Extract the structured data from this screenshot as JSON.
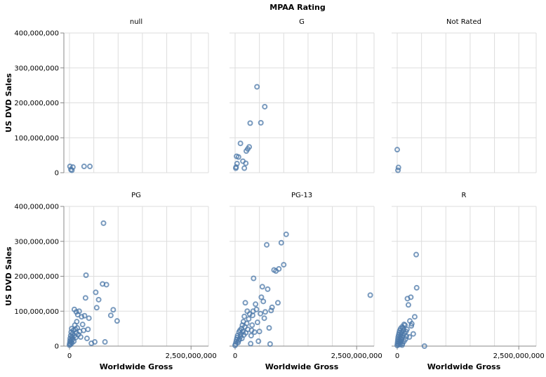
{
  "chart_data": {
    "type": "scatter",
    "column_title": "MPAA Rating",
    "xlabel": "Worldwide Gross",
    "ylabel": "US DVD Sales",
    "xlim": [
      0,
      2800000000
    ],
    "ylim": [
      0,
      400000000
    ],
    "x_ticks": [
      0,
      2500000000
    ],
    "y_ticks": [
      0,
      100000000,
      200000000,
      300000000,
      400000000
    ],
    "grid": true,
    "point_color": "#4c78a8",
    "facets": [
      {
        "label": "null",
        "points": [
          [
            10000000,
            18000000
          ],
          [
            30000000,
            9000000
          ],
          [
            50000000,
            7000000
          ],
          [
            70000000,
            16000000
          ],
          [
            300000000,
            18000000
          ],
          [
            420000000,
            18000000
          ]
        ]
      },
      {
        "label": "G",
        "points": [
          [
            15000000,
            13000000
          ],
          [
            20000000,
            16000000
          ],
          [
            30000000,
            47000000
          ],
          [
            40000000,
            26000000
          ],
          [
            70000000,
            45000000
          ],
          [
            110000000,
            84000000
          ],
          [
            160000000,
            33000000
          ],
          [
            190000000,
            13000000
          ],
          [
            220000000,
            27000000
          ],
          [
            230000000,
            62000000
          ],
          [
            260000000,
            68000000
          ],
          [
            290000000,
            74000000
          ],
          [
            310000000,
            142000000
          ],
          [
            450000000,
            246000000
          ],
          [
            530000000,
            143000000
          ],
          [
            610000000,
            189000000
          ]
        ]
      },
      {
        "label": "Not Rated",
        "points": [
          [
            0,
            66000000
          ],
          [
            15000000,
            7000000
          ],
          [
            25000000,
            15000000
          ]
        ]
      },
      {
        "label": "PG",
        "points": [
          [
            0,
            3000000
          ],
          [
            5000000,
            8000000
          ],
          [
            10000000,
            15000000
          ],
          [
            15000000,
            22000000
          ],
          [
            20000000,
            5000000
          ],
          [
            25000000,
            30000000
          ],
          [
            30000000,
            12000000
          ],
          [
            35000000,
            40000000
          ],
          [
            40000000,
            18000000
          ],
          [
            45000000,
            50000000
          ],
          [
            50000000,
            9000000
          ],
          [
            55000000,
            26000000
          ],
          [
            60000000,
            35000000
          ],
          [
            70000000,
            20000000
          ],
          [
            80000000,
            45000000
          ],
          [
            90000000,
            14000000
          ],
          [
            100000000,
            30000000
          ],
          [
            110000000,
            60000000
          ],
          [
            120000000,
            48000000
          ],
          [
            130000000,
            25000000
          ],
          [
            140000000,
            38000000
          ],
          [
            150000000,
            70000000
          ],
          [
            160000000,
            52000000
          ],
          [
            170000000,
            90000000
          ],
          [
            180000000,
            33000000
          ],
          [
            200000000,
            100000000
          ],
          [
            210000000,
            42000000
          ],
          [
            230000000,
            26000000
          ],
          [
            250000000,
            84000000
          ],
          [
            270000000,
            62000000
          ],
          [
            290000000,
            45000000
          ],
          [
            310000000,
            87000000
          ],
          [
            330000000,
            138000000
          ],
          [
            340000000,
            203000000
          ],
          [
            360000000,
            22000000
          ],
          [
            380000000,
            48000000
          ],
          [
            400000000,
            80000000
          ],
          [
            450000000,
            8000000
          ],
          [
            520000000,
            12000000
          ],
          [
            540000000,
            154000000
          ],
          [
            560000000,
            110000000
          ],
          [
            600000000,
            133000000
          ],
          [
            680000000,
            178000000
          ],
          [
            700000000,
            352000000
          ],
          [
            730000000,
            12000000
          ],
          [
            760000000,
            176000000
          ],
          [
            850000000,
            88000000
          ],
          [
            900000000,
            104000000
          ],
          [
            980000000,
            72000000
          ],
          [
            100000000,
            105000000
          ],
          [
            140000000,
            98000000
          ]
        ]
      },
      {
        "label": "PG-13",
        "points": [
          [
            0,
            2000000
          ],
          [
            10000000,
            6000000
          ],
          [
            20000000,
            12000000
          ],
          [
            30000000,
            18000000
          ],
          [
            40000000,
            24000000
          ],
          [
            50000000,
            30000000
          ],
          [
            60000000,
            10000000
          ],
          [
            70000000,
            15000000
          ],
          [
            80000000,
            40000000
          ],
          [
            90000000,
            20000000
          ],
          [
            100000000,
            45000000
          ],
          [
            110000000,
            28000000
          ],
          [
            120000000,
            35000000
          ],
          [
            130000000,
            50000000
          ],
          [
            140000000,
            22000000
          ],
          [
            150000000,
            60000000
          ],
          [
            160000000,
            42000000
          ],
          [
            170000000,
            70000000
          ],
          [
            180000000,
            32000000
          ],
          [
            190000000,
            85000000
          ],
          [
            200000000,
            55000000
          ],
          [
            210000000,
            124000000
          ],
          [
            220000000,
            38000000
          ],
          [
            240000000,
            65000000
          ],
          [
            250000000,
            100000000
          ],
          [
            260000000,
            48000000
          ],
          [
            280000000,
            78000000
          ],
          [
            300000000,
            92000000
          ],
          [
            320000000,
            7000000
          ],
          [
            330000000,
            30000000
          ],
          [
            340000000,
            45000000
          ],
          [
            350000000,
            60000000
          ],
          [
            360000000,
            88000000
          ],
          [
            370000000,
            100000000
          ],
          [
            380000000,
            194000000
          ],
          [
            400000000,
            40000000
          ],
          [
            420000000,
            120000000
          ],
          [
            440000000,
            105000000
          ],
          [
            460000000,
            68000000
          ],
          [
            480000000,
            14000000
          ],
          [
            500000000,
            42000000
          ],
          [
            520000000,
            93000000
          ],
          [
            540000000,
            140000000
          ],
          [
            560000000,
            170000000
          ],
          [
            580000000,
            128000000
          ],
          [
            600000000,
            80000000
          ],
          [
            620000000,
            98000000
          ],
          [
            650000000,
            290000000
          ],
          [
            670000000,
            163000000
          ],
          [
            700000000,
            52000000
          ],
          [
            720000000,
            6000000
          ],
          [
            740000000,
            102000000
          ],
          [
            760000000,
            111000000
          ],
          [
            800000000,
            218000000
          ],
          [
            840000000,
            215000000
          ],
          [
            880000000,
            124000000
          ],
          [
            900000000,
            221000000
          ],
          [
            950000000,
            296000000
          ],
          [
            1000000000,
            233000000
          ],
          [
            1050000000,
            320000000
          ],
          [
            2780000000,
            146000000
          ]
        ]
      },
      {
        "label": "R",
        "points": [
          [
            0,
            2000000
          ],
          [
            5000000,
            8000000
          ],
          [
            10000000,
            14000000
          ],
          [
            15000000,
            20000000
          ],
          [
            20000000,
            26000000
          ],
          [
            25000000,
            4000000
          ],
          [
            30000000,
            32000000
          ],
          [
            35000000,
            10000000
          ],
          [
            40000000,
            38000000
          ],
          [
            45000000,
            16000000
          ],
          [
            50000000,
            44000000
          ],
          [
            55000000,
            22000000
          ],
          [
            60000000,
            5000000
          ],
          [
            65000000,
            28000000
          ],
          [
            70000000,
            50000000
          ],
          [
            75000000,
            12000000
          ],
          [
            80000000,
            34000000
          ],
          [
            85000000,
            18000000
          ],
          [
            90000000,
            40000000
          ],
          [
            95000000,
            24000000
          ],
          [
            100000000,
            55000000
          ],
          [
            110000000,
            8000000
          ],
          [
            120000000,
            30000000
          ],
          [
            130000000,
            46000000
          ],
          [
            140000000,
            14000000
          ],
          [
            150000000,
            36000000
          ],
          [
            160000000,
            60000000
          ],
          [
            170000000,
            20000000
          ],
          [
            180000000,
            42000000
          ],
          [
            190000000,
            28000000
          ],
          [
            100000000,
            3000000
          ],
          [
            120000000,
            52000000
          ],
          [
            140000000,
            62000000
          ],
          [
            200000000,
            48000000
          ],
          [
            210000000,
            136000000
          ],
          [
            230000000,
            118000000
          ],
          [
            250000000,
            26000000
          ],
          [
            260000000,
            72000000
          ],
          [
            280000000,
            140000000
          ],
          [
            290000000,
            58000000
          ],
          [
            300000000,
            64000000
          ],
          [
            330000000,
            35000000
          ],
          [
            360000000,
            84000000
          ],
          [
            390000000,
            262000000
          ],
          [
            400000000,
            167000000
          ],
          [
            560000000,
            0
          ]
        ]
      }
    ]
  }
}
